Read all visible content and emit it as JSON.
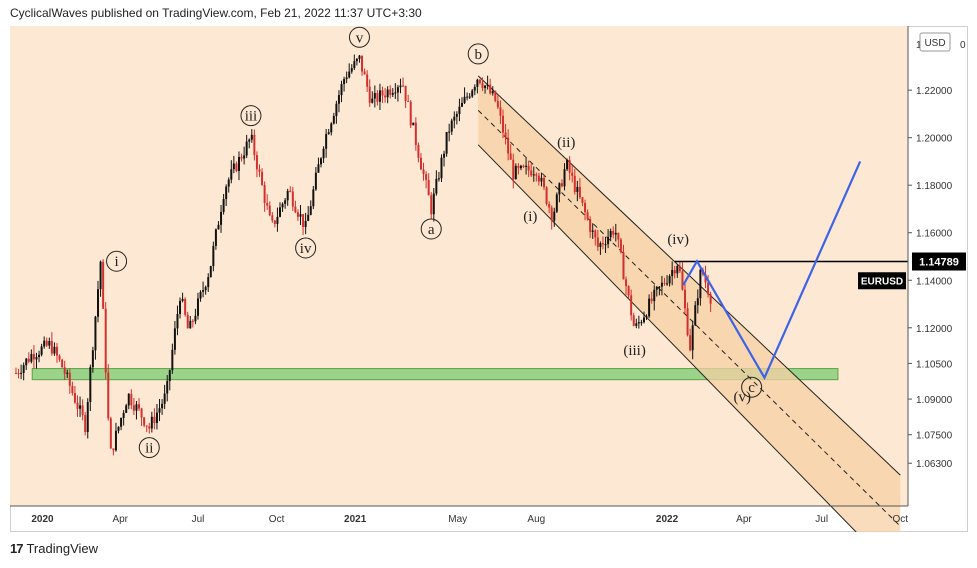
{
  "header": {
    "text": "CyclicalWaves published on TradingView.com, Feb 21, 2022 11:37 UTC+3:30"
  },
  "footer": {
    "logo_glyph": "17",
    "brand": "TradingView"
  },
  "colors": {
    "background": "#fde9d3",
    "channel_fill": "#f6d0a4",
    "support_band": "#9cd38a",
    "candle_up": "#111111",
    "candle_down": "#d32f2f",
    "projection": "#3f63e8",
    "last_price_badge": "#000000"
  },
  "chart_data": {
    "type": "candlestick",
    "symbol": "EURUSD",
    "currency": "USD",
    "last_price": "1.14789",
    "last_price_value": 1.14789,
    "x_axis_ticks": [
      "2020",
      "Apr",
      "Jul",
      "Oct",
      "2021",
      "May",
      "Aug",
      "2022",
      "Apr",
      "Jul",
      "Oct"
    ],
    "y_axis_ticks": [
      "1.22000",
      "1.20000",
      "1.18000",
      "1.16000",
      "1.14000",
      "1.12000",
      "1.10500",
      "1.09000",
      "1.07500",
      "1.06300"
    ],
    "y_axis_top_label": "1",
    "y_axis_top_label_suffix": "0",
    "ylim": [
      1.045,
      1.247
    ],
    "price_path": [
      {
        "date": "2019-12-01",
        "price": 1.101
      },
      {
        "date": "2019-12-20",
        "price": 1.109
      },
      {
        "date": "2020-01-10",
        "price": 1.113
      },
      {
        "date": "2020-01-25",
        "price": 1.103
      },
      {
        "date": "2020-02-20",
        "price": 1.079
      },
      {
        "date": "2020-03-09",
        "price": 1.148
      },
      {
        "date": "2020-03-20",
        "price": 1.066
      },
      {
        "date": "2020-04-10",
        "price": 1.092
      },
      {
        "date": "2020-05-05",
        "price": 1.078
      },
      {
        "date": "2020-05-25",
        "price": 1.092
      },
      {
        "date": "2020-06-10",
        "price": 1.134
      },
      {
        "date": "2020-06-20",
        "price": 1.118
      },
      {
        "date": "2020-07-15",
        "price": 1.145
      },
      {
        "date": "2020-08-01",
        "price": 1.179
      },
      {
        "date": "2020-09-01",
        "price": 1.2
      },
      {
        "date": "2020-09-25",
        "price": 1.162
      },
      {
        "date": "2020-10-15",
        "price": 1.178
      },
      {
        "date": "2020-11-04",
        "price": 1.162
      },
      {
        "date": "2020-11-25",
        "price": 1.198
      },
      {
        "date": "2020-12-20",
        "price": 1.226
      },
      {
        "date": "2021-01-06",
        "price": 1.233
      },
      {
        "date": "2021-01-20",
        "price": 1.215
      },
      {
        "date": "2021-02-25",
        "price": 1.224
      },
      {
        "date": "2021-03-31",
        "price": 1.17
      },
      {
        "date": "2021-04-20",
        "price": 1.203
      },
      {
        "date": "2021-05-25",
        "price": 1.226
      },
      {
        "date": "2021-06-15",
        "price": 1.215
      },
      {
        "date": "2021-07-05",
        "price": 1.185
      },
      {
        "date": "2021-08-01",
        "price": 1.187
      },
      {
        "date": "2021-08-20",
        "price": 1.167
      },
      {
        "date": "2021-09-05",
        "price": 1.189
      },
      {
        "date": "2021-10-12",
        "price": 1.154
      },
      {
        "date": "2021-11-01",
        "price": 1.162
      },
      {
        "date": "2021-11-24",
        "price": 1.119
      },
      {
        "date": "2021-12-15",
        "price": 1.132
      },
      {
        "date": "2022-01-14",
        "price": 1.148
      },
      {
        "date": "2022-01-28",
        "price": 1.112
      },
      {
        "date": "2022-02-10",
        "price": 1.145
      },
      {
        "date": "2022-02-21",
        "price": 1.133
      }
    ],
    "projection": [
      {
        "date": "2022-01-20",
        "price": 1.138
      },
      {
        "date": "2022-02-05",
        "price": 1.148
      },
      {
        "date": "2022-04-25",
        "price": 1.099
      },
      {
        "date": "2022-08-15",
        "price": 1.19
      }
    ],
    "wave_labels": [
      {
        "text": "v",
        "style": "circle",
        "date": "2021-01-06",
        "price": 1.233,
        "pos": "above"
      },
      {
        "text": "iii",
        "style": "circle",
        "date": "2020-09-01",
        "price": 1.2,
        "pos": "above"
      },
      {
        "text": "iv",
        "style": "circle",
        "date": "2020-11-04",
        "price": 1.162,
        "pos": "below"
      },
      {
        "text": "i",
        "style": "circle",
        "date": "2020-03-09",
        "price": 1.148,
        "pos": "right"
      },
      {
        "text": "ii",
        "style": "circle",
        "date": "2020-05-05",
        "price": 1.078,
        "pos": "below"
      },
      {
        "text": "a",
        "style": "circle",
        "date": "2021-03-31",
        "price": 1.17,
        "pos": "below"
      },
      {
        "text": "b",
        "style": "circle",
        "date": "2021-05-25",
        "price": 1.226,
        "pos": "above"
      },
      {
        "text": "(i)",
        "style": "plain",
        "date": "2021-07-25",
        "price": 1.167,
        "pos": "center"
      },
      {
        "text": "(ii)",
        "style": "plain",
        "date": "2021-09-05",
        "price": 1.189,
        "pos": "above"
      },
      {
        "text": "(iii)",
        "style": "plain",
        "date": "2021-11-24",
        "price": 1.119,
        "pos": "below"
      },
      {
        "text": "(iv)",
        "style": "plain",
        "date": "2022-01-14",
        "price": 1.148,
        "pos": "above"
      },
      {
        "text": "(v)",
        "style": "plain",
        "date": "2022-03-30",
        "price": 1.091,
        "pos": "center"
      },
      {
        "text": "c",
        "style": "circle",
        "date": "2022-04-10",
        "price": 1.095,
        "pos": "center"
      }
    ],
    "channel": {
      "upper": [
        {
          "date": "2021-05-25",
          "price": 1.226
        },
        {
          "date": "2022-10-01",
          "price": 1.058
        }
      ],
      "lower": [
        {
          "date": "2021-05-25",
          "price": 1.197
        },
        {
          "date": "2022-10-01",
          "price": 1.015
        }
      ],
      "shaded_from": "2021-05-25"
    },
    "support_zone": {
      "from": "2019-12-20",
      "to": "2022-07-20",
      "low": 1.099,
      "high": 1.102
    },
    "resistance_line": {
      "from": "2022-01-10",
      "price": 1.14789
    }
  }
}
